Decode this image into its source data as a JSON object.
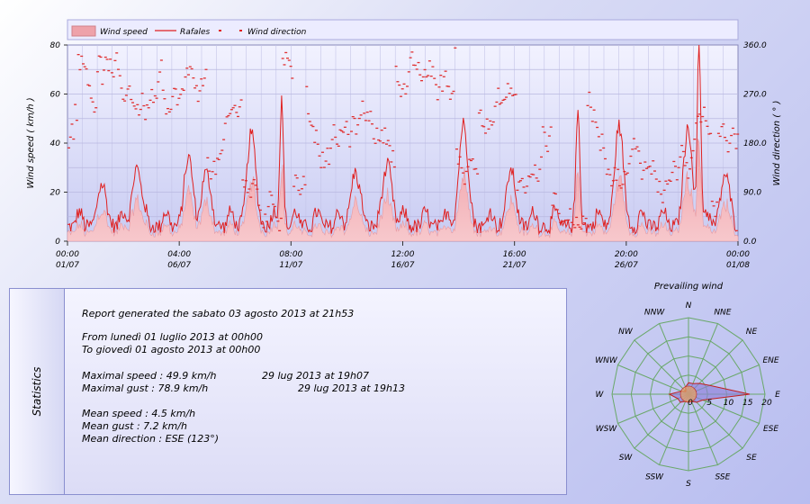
{
  "chart_data": [
    {
      "type": "area",
      "x_ticks": [
        {
          "time": "00:00",
          "date": "01/07"
        },
        {
          "time": "04:00",
          "date": "06/07"
        },
        {
          "time": "08:00",
          "date": "11/07"
        },
        {
          "time": "12:00",
          "date": "16/07"
        },
        {
          "time": "16:00",
          "date": "21/07"
        },
        {
          "time": "20:00",
          "date": "26/07"
        },
        {
          "time": "00:00",
          "date": "01/08"
        }
      ],
      "ylabel": "Wind speed ( km/h )",
      "ylim": [
        0,
        80
      ],
      "y_ticks": [
        "0",
        "20",
        "40",
        "60",
        "80"
      ],
      "y2label": "Wind direction ( ° )",
      "y2lim": [
        0,
        360
      ],
      "y2_ticks": [
        "0.0",
        "90.0",
        "180.0",
        "270.0",
        "360.0"
      ],
      "legend": {
        "placement": "top",
        "entries": [
          "Wind speed",
          "Rafales",
          "Wind direction"
        ]
      },
      "grid": true,
      "series": [
        {
          "name": "Wind speed",
          "kind": "area",
          "color": "#f0a0a8"
        },
        {
          "name": "Rafales",
          "kind": "line",
          "color": "#e02020",
          "peaks": [
            {
              "day": 1.6,
              "value": 22
            },
            {
              "day": 3.2,
              "value": 29
            },
            {
              "day": 5.6,
              "value": 33
            },
            {
              "day": 6.4,
              "value": 27
            },
            {
              "day": 8.5,
              "value": 43
            },
            {
              "day": 9.9,
              "value": 56
            },
            {
              "day": 13.3,
              "value": 27
            },
            {
              "day": 14.8,
              "value": 30
            },
            {
              "day": 18.3,
              "value": 47
            },
            {
              "day": 20.5,
              "value": 28
            },
            {
              "day": 23.6,
              "value": 52
            },
            {
              "day": 25.5,
              "value": 46
            },
            {
              "day": 28.7,
              "value": 45
            },
            {
              "day": 29.2,
              "value": 78.9
            },
            {
              "day": 30.4,
              "value": 26
            }
          ]
        },
        {
          "name": "Wind direction",
          "kind": "scatter",
          "color": "#e02020",
          "axis": "y2"
        }
      ]
    },
    {
      "type": "radar",
      "title": "Prevailing wind",
      "directions": [
        "N",
        "NNE",
        "NE",
        "ENE",
        "E",
        "ESE",
        "SE",
        "SSE",
        "S",
        "SSW",
        "SW",
        "WSW",
        "W",
        "WNW",
        "NW",
        "NNW"
      ],
      "values": [
        3,
        3,
        4,
        6,
        16,
        4,
        3,
        2,
        2,
        2,
        3,
        3,
        5,
        2,
        1,
        2
      ],
      "radial_ticks": [
        "0",
        "5",
        "10",
        "15",
        "20"
      ],
      "rmax": 20,
      "grid_color": "#6aa86a",
      "fill_color": "#8e80d8"
    }
  ],
  "statistics": {
    "tab_label": "Statistics",
    "report": "Report generated the sabato 03 agosto 2013 at 21h53",
    "from": "From lunedì 01 luglio 2013 at 00h00",
    "to": "To giovedì 01 agosto 2013 at 00h00",
    "max_speed_label": "Maximal speed : 49.9 km/h",
    "max_speed_date": "29 lug 2013 at 19h07",
    "max_gust_label": "Maximal gust : 78.9 km/h",
    "max_gust_date": "29 lug 2013 at 19h13",
    "mean_speed": "Mean speed : 4.5 km/h",
    "mean_gust": "Mean gust : 7.2 km/h",
    "mean_direction": "Mean direction : ESE (123°)"
  }
}
